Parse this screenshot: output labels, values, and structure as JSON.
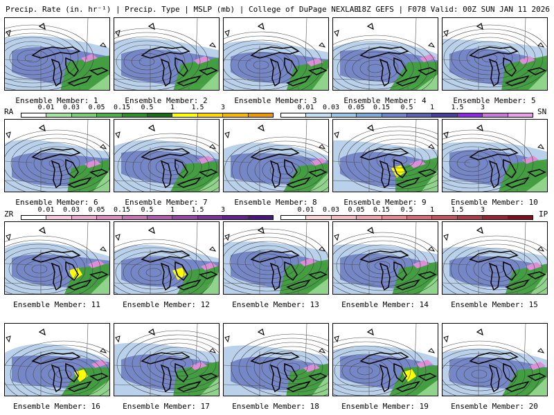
{
  "header": {
    "left": "Precip. Rate (in. hr⁻¹) | Precip. Type | MSLP (mb) | College of DuPage NEXLAB",
    "right": "18Z GEFS | F078 Valid: 00Z SUN JAN 11 2026"
  },
  "member_prefix": "Ensemble Member:",
  "members": [
    {
      "num": "1"
    },
    {
      "num": "2"
    },
    {
      "num": "3"
    },
    {
      "num": "4"
    },
    {
      "num": "5"
    },
    {
      "num": "6"
    },
    {
      "num": "7"
    },
    {
      "num": "8"
    },
    {
      "num": "9"
    },
    {
      "num": "10"
    },
    {
      "num": "11"
    },
    {
      "num": "12"
    },
    {
      "num": "13"
    },
    {
      "num": "14"
    },
    {
      "num": "15"
    },
    {
      "num": "16"
    },
    {
      "num": "17"
    },
    {
      "num": "18"
    },
    {
      "num": "19"
    },
    {
      "num": "20"
    }
  ],
  "legends": {
    "ra": {
      "name": "RA",
      "ticks": [
        "0.01",
        "0.03",
        "0.05",
        "0.15",
        "0.5",
        "1",
        "1.5",
        "3"
      ],
      "colors": [
        "#ffffff",
        "#a6e3a0",
        "#7ccc78",
        "#4fb04a",
        "#2e8f2a",
        "#1c6b1a",
        "#ffff00",
        "#ffd700",
        "#f5b800",
        "#e89a00"
      ]
    },
    "sn": {
      "name": "SN",
      "ticks": [
        "0.01",
        "0.03",
        "0.05",
        "0.15",
        "0.5",
        "1",
        "1.5",
        "3"
      ],
      "colors": [
        "#ffffff",
        "#bfe0f5",
        "#9cc7e8",
        "#7faad8",
        "#6f86c8",
        "#5b62b0",
        "#4a3f99",
        "#8a2be2",
        "#c77ad6",
        "#e6a0e6"
      ]
    },
    "zr": {
      "name": "ZR",
      "ticks": [
        "0.01",
        "0.03",
        "0.05",
        "0.15",
        "0.5",
        "1",
        "1.5",
        "3"
      ],
      "colors": [
        "#ffffff",
        "#f6c7dc",
        "#e9a9cc",
        "#dc8ec0",
        "#c873b8",
        "#b25bae",
        "#9646a2",
        "#7b3296",
        "#61228a",
        "#4a157c"
      ]
    },
    "ip": {
      "name": "IP",
      "ticks": [
        "0.01",
        "0.03",
        "0.05",
        "0.15",
        "0.5",
        "1",
        "1.5",
        "3"
      ],
      "colors": [
        "#ffffff",
        "#fbd3d8",
        "#f4b8c0",
        "#eea0aa",
        "#e38891",
        "#d46b75",
        "#c2525c",
        "#ad3a45",
        "#962430",
        "#7d0f1d"
      ]
    }
  },
  "colors": {
    "snow": "#6f7ec3",
    "snow_light": "#a9c6e6",
    "rain": "#3f9f3a",
    "rain_light": "#8fd48a",
    "mix": "#dd8fd6",
    "heavy_rain": "#ffff00",
    "isobar": "#444444"
  }
}
